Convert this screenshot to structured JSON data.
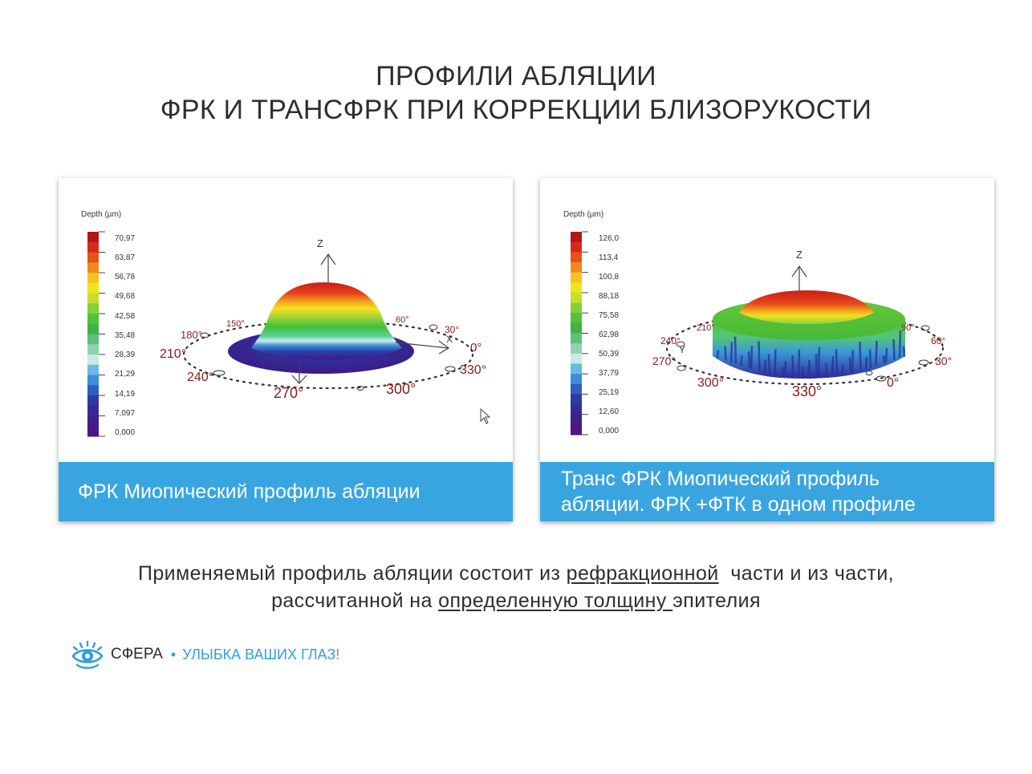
{
  "title": {
    "line1": "ПРОФИЛИ АБЛЯЦИИ",
    "line2": "ФРК И ТРАНСФРК ПРИ КОРРЕКЦИИ БЛИЗОРУКОСТИ"
  },
  "panels": [
    {
      "legend_title": "Depth (µm)",
      "scale_ticks": [
        "70,97",
        "63,87",
        "56,78",
        "49,68",
        "42,58",
        "35,48",
        "28,39",
        "21,29",
        "14,19",
        "7,097",
        "0,000"
      ],
      "axis_z": "Z",
      "axis_x": "X",
      "axis_y": "Y",
      "angles": [
        "150°",
        "60°",
        "180°",
        "30°",
        "210°",
        "0°",
        "240°",
        "330°",
        "270°",
        "300°"
      ],
      "caption": "ФРК Миопический профиль абляции"
    },
    {
      "legend_title": "Depth (µm)",
      "scale_ticks": [
        "126,0",
        "113,4",
        "100,8",
        "88,18",
        "75,58",
        "62,98",
        "50,39",
        "37,79",
        "25,19",
        "12,60",
        "0,000"
      ],
      "axis_z": "Z",
      "axis_y": "Y",
      "angles": [
        "210°",
        "90°",
        "240°",
        "60°",
        "270°",
        "30°",
        "300°",
        "330°",
        "0°"
      ],
      "caption_line1": "Транс ФРК Миопический профиль",
      "caption_line2": "абляции. ФРК +ФТК в одном профиле"
    }
  ],
  "bottom_text": {
    "line1_a": "Применяемый профиль абляции состоит из ",
    "line1_u": "рефракционной",
    "line1_b": "  части и из части,",
    "line2_a": "рассчитанной на ",
    "line2_u": "определенную толщину ",
    "line2_b": "эпителия"
  },
  "logo": {
    "brand": "СФЕРА",
    "separator": "•",
    "slogan": "УЛЫБКА ВАШИХ ГЛАЗ!"
  },
  "colors": {
    "caption_bg": "#39a5e0",
    "accent": "#2f9fdc",
    "angle_label": "#8b1a1a"
  }
}
